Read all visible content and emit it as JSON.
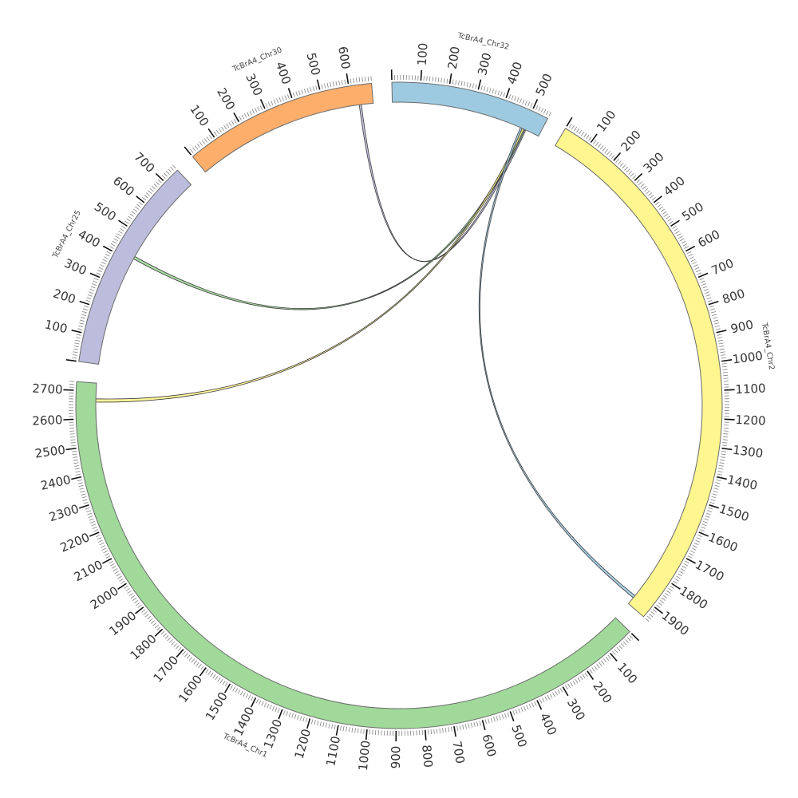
{
  "chart_data": {
    "type": "chord",
    "chromosomes": [
      {
        "name": "TcBrA4_Chr2",
        "length": 1950,
        "color": "#fff68f"
      },
      {
        "name": "TcBrA4_Chr1",
        "length": 2730,
        "color": "#a1d99b"
      },
      {
        "name": "TcBrA4_Chr25",
        "length": 760,
        "color": "#bcbddc"
      },
      {
        "name": "TcBrA4_Chr30",
        "length": 680,
        "color": "#fdae6b"
      },
      {
        "name": "TcBrA4_Chr32",
        "length": 560,
        "color": "#9ecae1"
      }
    ],
    "tick_labels": {
      "TcBrA4_Chr2": [
        "100",
        "200",
        "300",
        "400",
        "500",
        "600",
        "700",
        "800",
        "900",
        "1000",
        "1100",
        "1200",
        "1300",
        "1400",
        "1500",
        "1600",
        "1700",
        "1800",
        "1900"
      ],
      "TcBrA4_Chr1": [
        "100",
        "200",
        "300",
        "400",
        "500",
        "600",
        "700",
        "800",
        "900",
        "1000",
        "1100",
        "1200",
        "1300",
        "1400",
        "1500",
        "1600",
        "1700",
        "1800",
        "1900",
        "2000",
        "2100",
        "2200",
        "2300",
        "2400",
        "2500",
        "2600",
        "2700"
      ],
      "TcBrA4_Chr25": [
        "100",
        "200",
        "300",
        "400",
        "500",
        "600",
        "700"
      ],
      "TcBrA4_Chr30": [
        "100",
        "200",
        "300",
        "400",
        "500",
        "600"
      ],
      "TcBrA4_Chr32": [
        "100",
        "200",
        "300",
        "400",
        "500"
      ]
    },
    "major_tick_interval": 100,
    "minor_tick_interval": 10,
    "links": [
      {
        "source": {
          "chr": "TcBrA4_Chr32",
          "start": 500,
          "end": 508
        },
        "target": {
          "chr": "TcBrA4_Chr30",
          "start": 628,
          "end": 636
        },
        "color": "#bcbddc"
      },
      {
        "source": {
          "chr": "TcBrA4_Chr32",
          "start": 496,
          "end": 504
        },
        "target": {
          "chr": "TcBrA4_Chr25",
          "start": 412,
          "end": 422
        },
        "color": "#a1d99b"
      },
      {
        "source": {
          "chr": "TcBrA4_Chr32",
          "start": 493,
          "end": 500
        },
        "target": {
          "chr": "TcBrA4_Chr1",
          "start": 2660,
          "end": 2672
        },
        "color": "#fff68f"
      },
      {
        "source": {
          "chr": "TcBrA4_Chr32",
          "start": 486,
          "end": 493
        },
        "target": {
          "chr": "TcBrA4_Chr2",
          "start": 1912,
          "end": 1922
        },
        "color": "#9ecae1"
      }
    ]
  }
}
